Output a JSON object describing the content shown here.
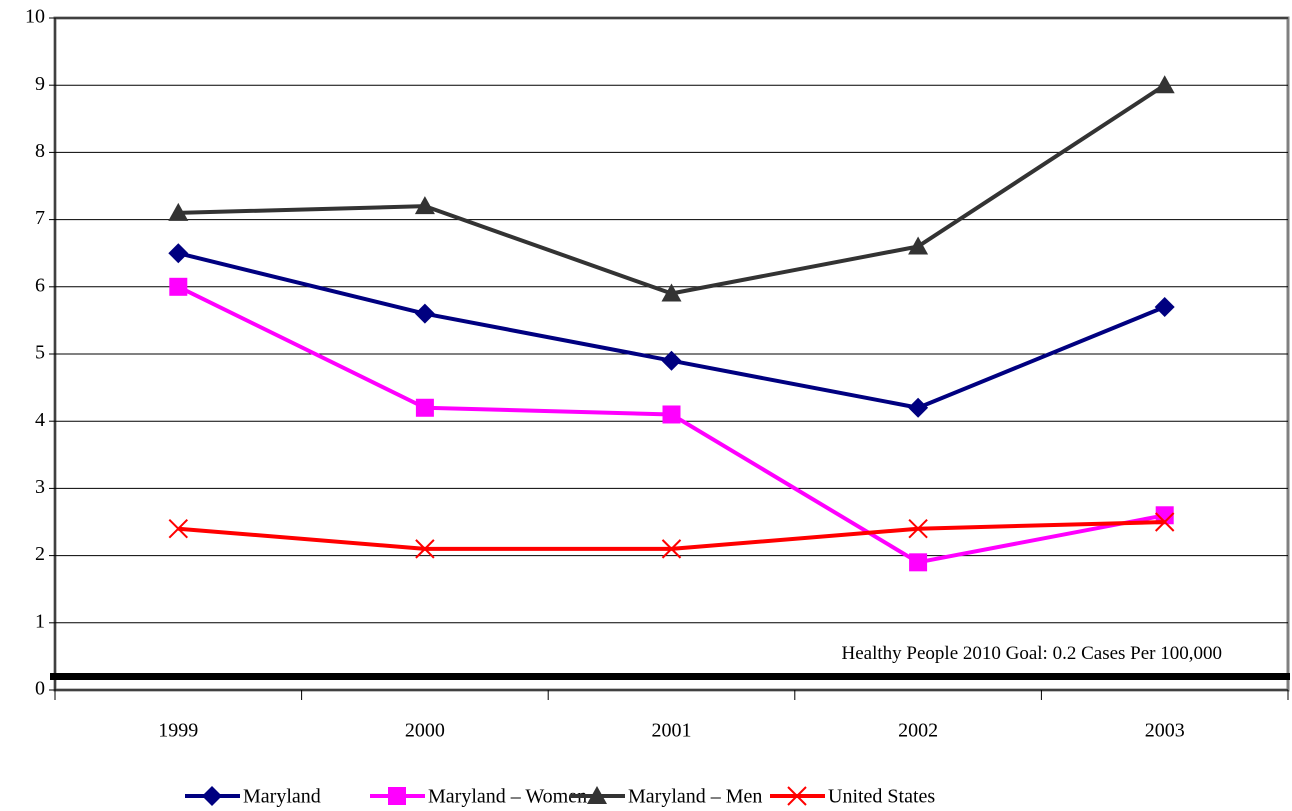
{
  "chart_data": {
    "type": "line",
    "categories": [
      "1999",
      "2000",
      "2001",
      "2002",
      "2003"
    ],
    "series": [
      {
        "name": "Maryland",
        "color": "#000080",
        "marker": "diamond",
        "values": [
          6.5,
          5.6,
          4.9,
          4.2,
          5.7
        ]
      },
      {
        "name": "Maryland – Women",
        "color": "#ff00ff",
        "marker": "square",
        "values": [
          6.0,
          4.2,
          4.1,
          1.9,
          2.6
        ]
      },
      {
        "name": "Maryland – Men",
        "color": "#333333",
        "marker": "triangle",
        "values": [
          7.1,
          7.2,
          5.9,
          6.6,
          9.0
        ]
      },
      {
        "name": "United States",
        "color": "#ff0000",
        "marker": "x",
        "values": [
          2.4,
          2.1,
          2.1,
          2.4,
          2.5
        ]
      }
    ],
    "ylim": [
      0,
      10
    ],
    "yticks": [
      0,
      1,
      2,
      3,
      4,
      5,
      6,
      7,
      8,
      9,
      10
    ],
    "grid": true,
    "goal_line": {
      "value": 0.2,
      "label": "Healthy People 2010 Goal:  0.2 Cases Per 100,000"
    },
    "legend": "bottom"
  }
}
